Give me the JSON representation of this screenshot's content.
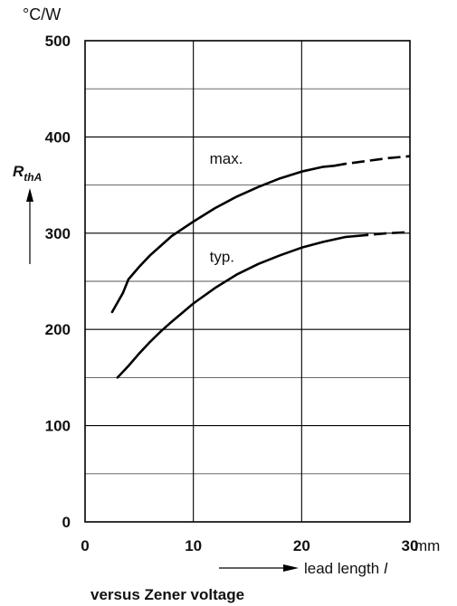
{
  "chart_data": {
    "type": "line",
    "ylabel": {
      "symbol": "R",
      "subscript": "thA",
      "unit": "°C/W"
    },
    "xlabel": {
      "text": "lead length",
      "symbol": "l",
      "unit": "mm"
    },
    "caption": "versus Zener voltage",
    "xlim": [
      0,
      30
    ],
    "ylim": [
      0,
      500
    ],
    "x_ticks": [
      "0",
      "10",
      "20",
      "30"
    ],
    "y_ticks": [
      "0",
      "100",
      "200",
      "300",
      "400",
      "500"
    ],
    "x_major_step": 10,
    "y_major_step": 100,
    "y_minor_step": 50,
    "grid": true,
    "series": [
      {
        "name": "max.",
        "x": [
          2.5,
          3,
          3.5,
          4,
          5,
          6,
          7,
          8,
          10,
          12,
          14,
          16,
          18,
          20,
          22,
          23
        ],
        "y": [
          218,
          228,
          238,
          252,
          265,
          277,
          287,
          297,
          312,
          326,
          338,
          348,
          357,
          364,
          369,
          370
        ],
        "dashed_x": [
          23,
          24,
          26,
          28,
          30
        ],
        "dashed_y": [
          370,
          372,
          375,
          378,
          380
        ]
      },
      {
        "name": "typ.",
        "x": [
          3,
          4,
          5,
          6,
          7,
          8,
          10,
          12,
          14,
          16,
          18,
          20,
          22,
          24,
          25
        ],
        "y": [
          150,
          162,
          175,
          187,
          198,
          208,
          227,
          243,
          257,
          268,
          277,
          285,
          291,
          296,
          297
        ],
        "dashed_x": [
          25,
          26,
          28,
          30
        ],
        "dashed_y": [
          297,
          298,
          300,
          301
        ]
      }
    ]
  }
}
